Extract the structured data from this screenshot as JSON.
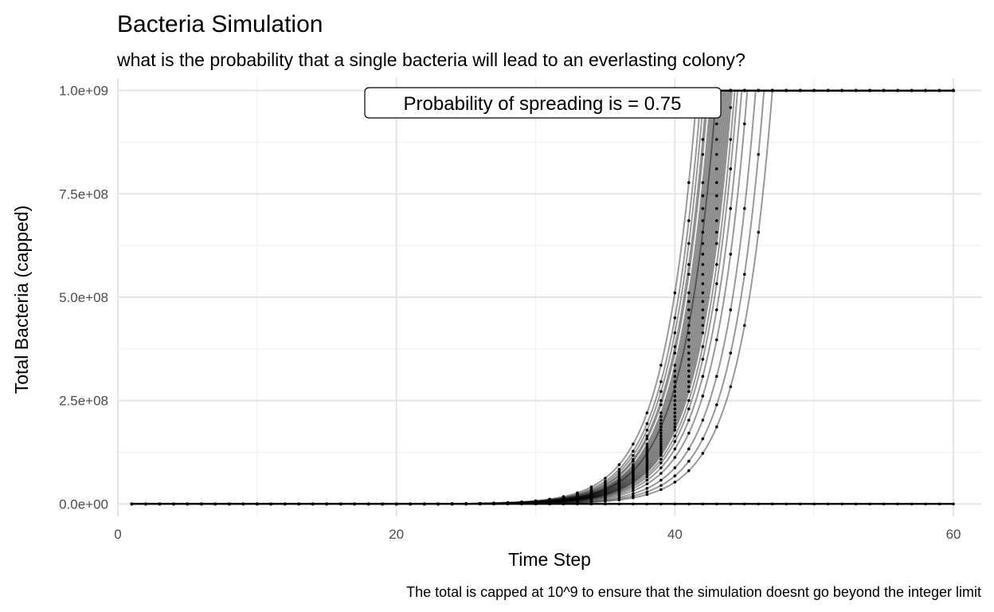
{
  "chart_data": {
    "type": "line",
    "title": "Bacteria Simulation",
    "subtitle": "what is the probability that a single bacteria will lead to an everlasting colony?",
    "xlabel": "Time Step",
    "ylabel": "Total Bacteria (capped)",
    "caption": "The total is capped at 10^9 to ensure that the simulation doesnt go beyond the integer limit",
    "annotation": "Probability of spreading is = 0.75",
    "xlim": [
      0,
      62
    ],
    "ylim": [
      -30000000,
      1030000000
    ],
    "x_ticks": [
      0,
      20,
      40,
      60
    ],
    "x_tick_labels": [
      "0",
      "20",
      "40",
      "60"
    ],
    "y_ticks": [
      0,
      250000000,
      500000000,
      750000000,
      1000000000
    ],
    "y_tick_labels": [
      "0.0e+00",
      "2.5e+08",
      "5.0e+08",
      "7.5e+08",
      "1.0e+09"
    ],
    "cap": 1000000000,
    "x_range": [
      1,
      60
    ],
    "grid": true,
    "line_color": "#000000",
    "line_opacity": 0.4,
    "point_color": "#000000",
    "series_reach_cap_at": [
      41.6,
      41.9,
      42.1,
      42.3,
      42.4,
      42.6,
      42.7,
      42.8,
      42.9,
      43.0,
      43.0,
      43.1,
      43.2,
      43.3,
      43.4,
      43.5,
      43.6,
      43.7,
      43.8,
      43.9,
      44.0,
      44.1,
      44.3,
      44.5,
      44.8,
      45.2,
      45.8,
      46.4,
      47.0
    ],
    "series_extinct_count": 10
  }
}
